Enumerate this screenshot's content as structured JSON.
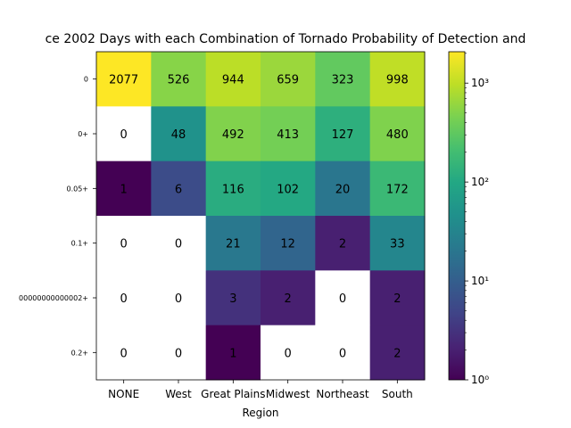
{
  "chart_data": {
    "type": "heatmap",
    "title": "ce 2002 Days with each Combination of Tornado Probability of Detection and",
    "xlabel": "Region",
    "ylabel": "",
    "x_categories": [
      "NONE",
      "West",
      "Great Plains",
      "Midwest",
      "Northeast",
      "South"
    ],
    "y_categories": [
      "0",
      "0+",
      "0.05+",
      "0.1+",
      "00000000000002+",
      "0.2+"
    ],
    "values": [
      [
        2077,
        526,
        944,
        659,
        323,
        998
      ],
      [
        0,
        48,
        492,
        413,
        127,
        480
      ],
      [
        1,
        6,
        116,
        102,
        20,
        172
      ],
      [
        0,
        0,
        21,
        12,
        2,
        33
      ],
      [
        0,
        0,
        3,
        2,
        0,
        2
      ],
      [
        0,
        0,
        1,
        0,
        0,
        2
      ]
    ],
    "colorscale": "viridis",
    "color_scale_type": "log",
    "colorbar": {
      "range": [
        1,
        2077
      ],
      "tick_values": [
        1,
        10,
        100,
        1000
      ],
      "tick_labels": [
        "10⁰",
        "10¹",
        "10²",
        "10³"
      ]
    },
    "zero_cells": "white",
    "grid": false
  }
}
